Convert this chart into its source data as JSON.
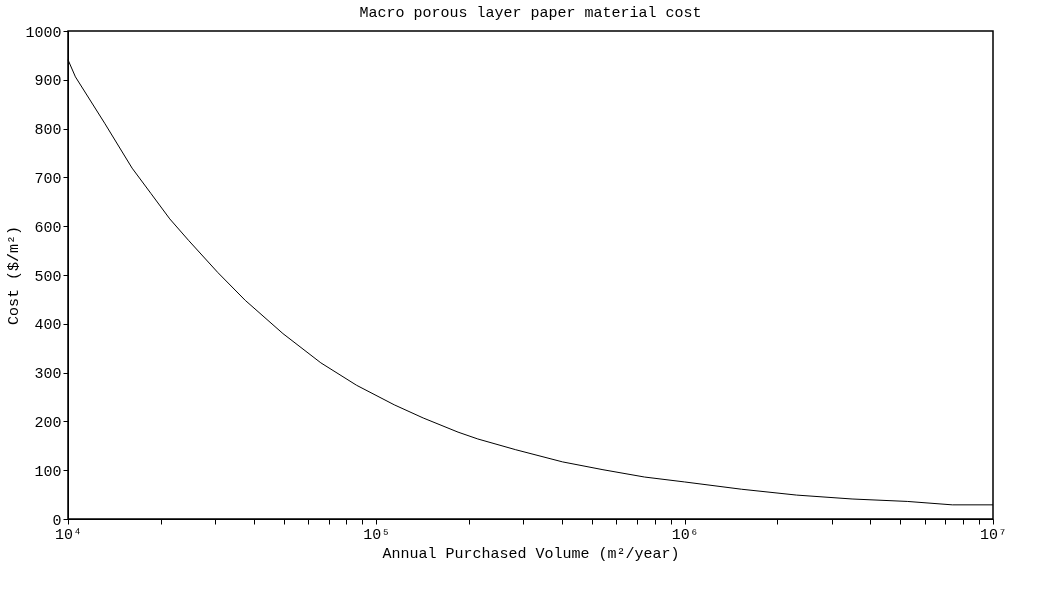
{
  "chart_data": {
    "type": "line",
    "title": "Macro porous layer paper material cost",
    "xlabel": "Annual Purchased Volume (m²/year)",
    "ylabel": "Cost ($/m²)",
    "x": [
      10000,
      10570,
      13150,
      16140,
      18580,
      21380,
      24600,
      30620,
      37580,
      49770,
      66070,
      86300,
      114300,
      141900,
      184100,
      213300,
      283100,
      401800,
      543300,
      741300,
      997700,
      1528000,
      2307000,
      3491000,
      5272000,
      7379000,
      10000000
    ],
    "series": [
      {
        "color": "#000000",
        "values": [
          941,
          906,
          811,
          719,
          667,
          615,
          571,
          505,
          448,
          380,
          320,
          274,
          234,
          207,
          178,
          164,
          142,
          117,
          101,
          86,
          76,
          61,
          49,
          41,
          36,
          29,
          29
        ]
      }
    ],
    "log": "x",
    "xlim": [
      10000,
      10000000
    ],
    "xticks": [
      {
        "value": 10000,
        "label": "10⁴"
      },
      {
        "value": 20000,
        "label": null
      },
      {
        "value": 30000,
        "label": null
      },
      {
        "value": 40000,
        "label": null
      },
      {
        "value": 50000,
        "label": null
      },
      {
        "value": 60000,
        "label": null
      },
      {
        "value": 70000,
        "label": null
      },
      {
        "value": 80000,
        "label": null
      },
      {
        "value": 90000,
        "label": null
      },
      {
        "value": 100000,
        "label": "10⁵"
      },
      {
        "value": 200000,
        "label": null
      },
      {
        "value": 300000,
        "label": null
      },
      {
        "value": 400000,
        "label": null
      },
      {
        "value": 500000,
        "label": null
      },
      {
        "value": 600000,
        "label": null
      },
      {
        "value": 700000,
        "label": null
      },
      {
        "value": 800000,
        "label": null
      },
      {
        "value": 900000,
        "label": null
      },
      {
        "value": 1000000,
        "label": "10⁶"
      },
      {
        "value": 2000000,
        "label": null
      },
      {
        "value": 3000000,
        "label": null
      },
      {
        "value": 4000000,
        "label": null
      },
      {
        "value": 5000000,
        "label": null
      },
      {
        "value": 6000000,
        "label": null
      },
      {
        "value": 7000000,
        "label": null
      },
      {
        "value": 8000000,
        "label": null
      },
      {
        "value": 9000000,
        "label": null
      },
      {
        "value": 10000000,
        "label": "10⁷"
      }
    ],
    "ylim": [
      0,
      1000
    ],
    "yticks": [
      0,
      100,
      200,
      300,
      400,
      500,
      600,
      700,
      800,
      900,
      1000
    ],
    "grid": false,
    "marker": "none",
    "line_style": "solid"
  }
}
